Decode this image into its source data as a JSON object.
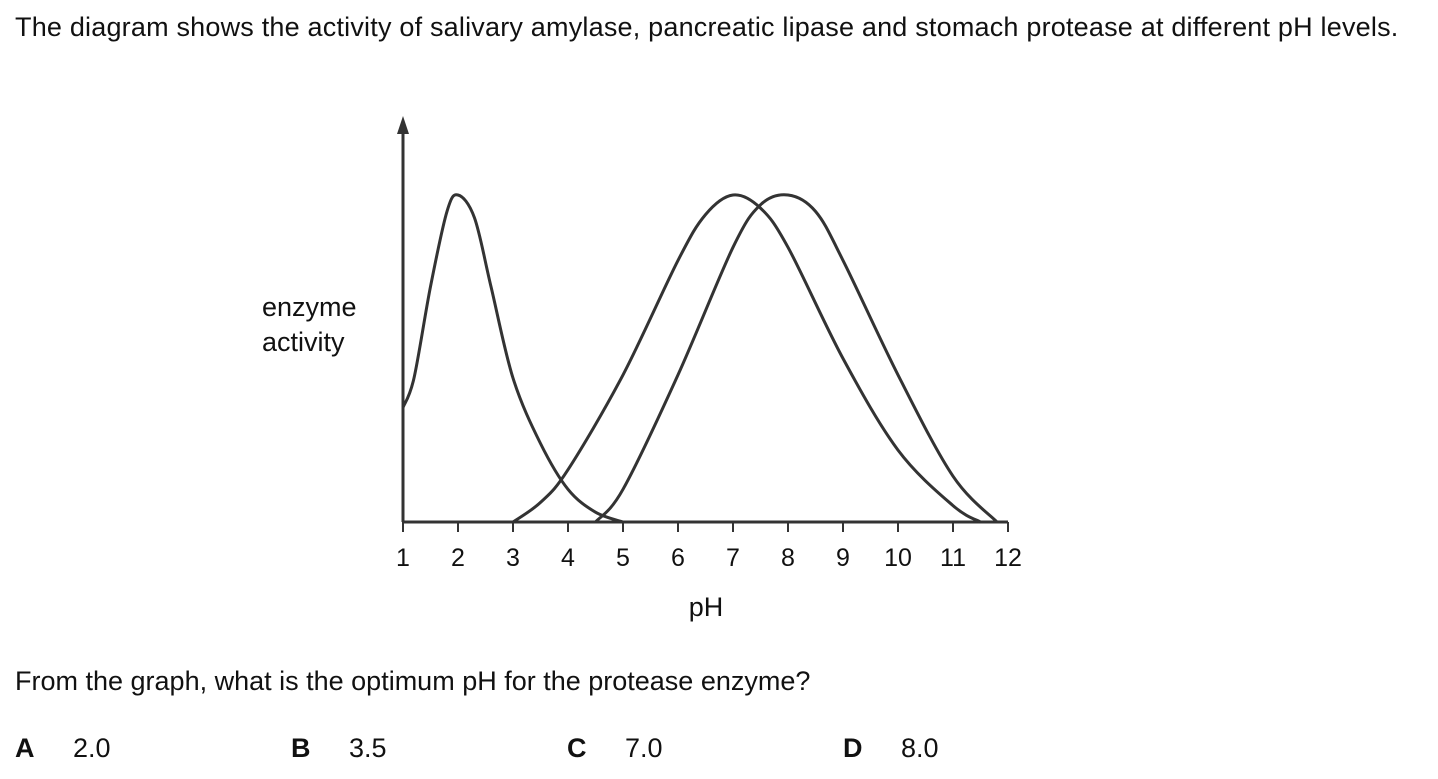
{
  "intro_text": "The diagram shows the activity of salivary amylase, pancreatic lipase and stomach protease at different pH levels.",
  "question": "From the graph, what is the optimum pH for the protease enzyme?",
  "options": [
    {
      "letter": "A",
      "value": "2.0"
    },
    {
      "letter": "B",
      "value": "3.5"
    },
    {
      "letter": "C",
      "value": "7.0"
    },
    {
      "letter": "D",
      "value": "8.0"
    }
  ],
  "chart_data": {
    "type": "line",
    "xlabel": "pH",
    "ylabel_lines": [
      "enzyme",
      "activity"
    ],
    "xlim": [
      1,
      12
    ],
    "ylim": [
      0,
      1
    ],
    "x_ticks": [
      "1",
      "2",
      "3",
      "4",
      "5",
      "6",
      "7",
      "8",
      "9",
      "10",
      "11",
      "12"
    ],
    "grid": false,
    "legend": "none",
    "series": [
      {
        "x": [
          1.0,
          1.2,
          1.5,
          1.8,
          2.0,
          2.3,
          2.6,
          3.0,
          3.5,
          4.0,
          4.5,
          5.0
        ],
        "y": [
          0.35,
          0.44,
          0.72,
          0.95,
          1.0,
          0.93,
          0.72,
          0.44,
          0.24,
          0.1,
          0.03,
          0.0
        ]
      },
      {
        "x": [
          3.0,
          3.5,
          4.0,
          5.0,
          6.0,
          6.5,
          7.0,
          7.5,
          8.0,
          9.0,
          10.0,
          11.0,
          11.5
        ],
        "y": [
          0.0,
          0.06,
          0.16,
          0.45,
          0.8,
          0.94,
          1.0,
          0.96,
          0.84,
          0.5,
          0.22,
          0.05,
          0.0
        ]
      },
      {
        "x": [
          4.5,
          5.0,
          6.0,
          7.0,
          7.5,
          8.0,
          8.5,
          9.0,
          10.0,
          11.0,
          11.8
        ],
        "y": [
          0.0,
          0.1,
          0.45,
          0.84,
          0.97,
          1.0,
          0.95,
          0.8,
          0.45,
          0.14,
          0.0
        ]
      }
    ]
  }
}
